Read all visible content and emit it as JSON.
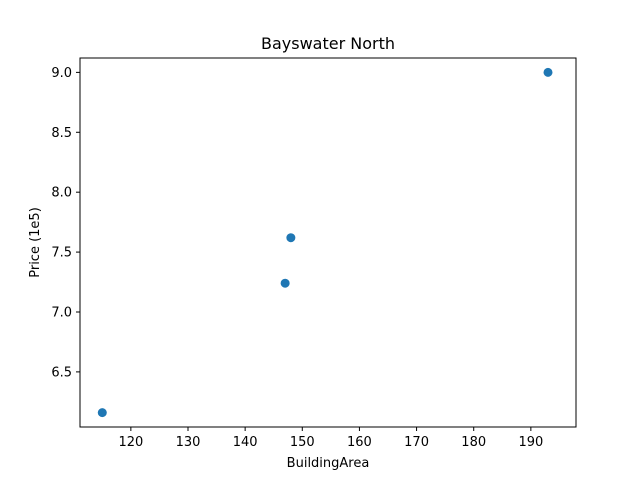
{
  "chart_data": {
    "type": "scatter",
    "title": "Bayswater North",
    "xlabel": "BuildingArea",
    "ylabel": "Price (1e5)",
    "xlim": [
      111.1,
      197.9
    ],
    "ylim": [
      6.04,
      9.12
    ],
    "xticks": [
      120,
      130,
      140,
      150,
      160,
      170,
      180,
      190
    ],
    "xtick_labels": [
      "120",
      "130",
      "140",
      "150",
      "160",
      "170",
      "180",
      "190"
    ],
    "yticks": [
      6.5,
      7.0,
      7.5,
      8.0,
      8.5,
      9.0
    ],
    "ytick_labels": [
      "6.5",
      "7.0",
      "7.5",
      "8.0",
      "8.5",
      "9.0"
    ],
    "grid": false,
    "series": [
      {
        "color": "#1f77b4",
        "points": [
          {
            "x": 115,
            "y": 6.16
          },
          {
            "x": 147,
            "y": 7.24
          },
          {
            "x": 148,
            "y": 7.62
          },
          {
            "x": 193,
            "y": 9.0
          }
        ]
      }
    ]
  }
}
